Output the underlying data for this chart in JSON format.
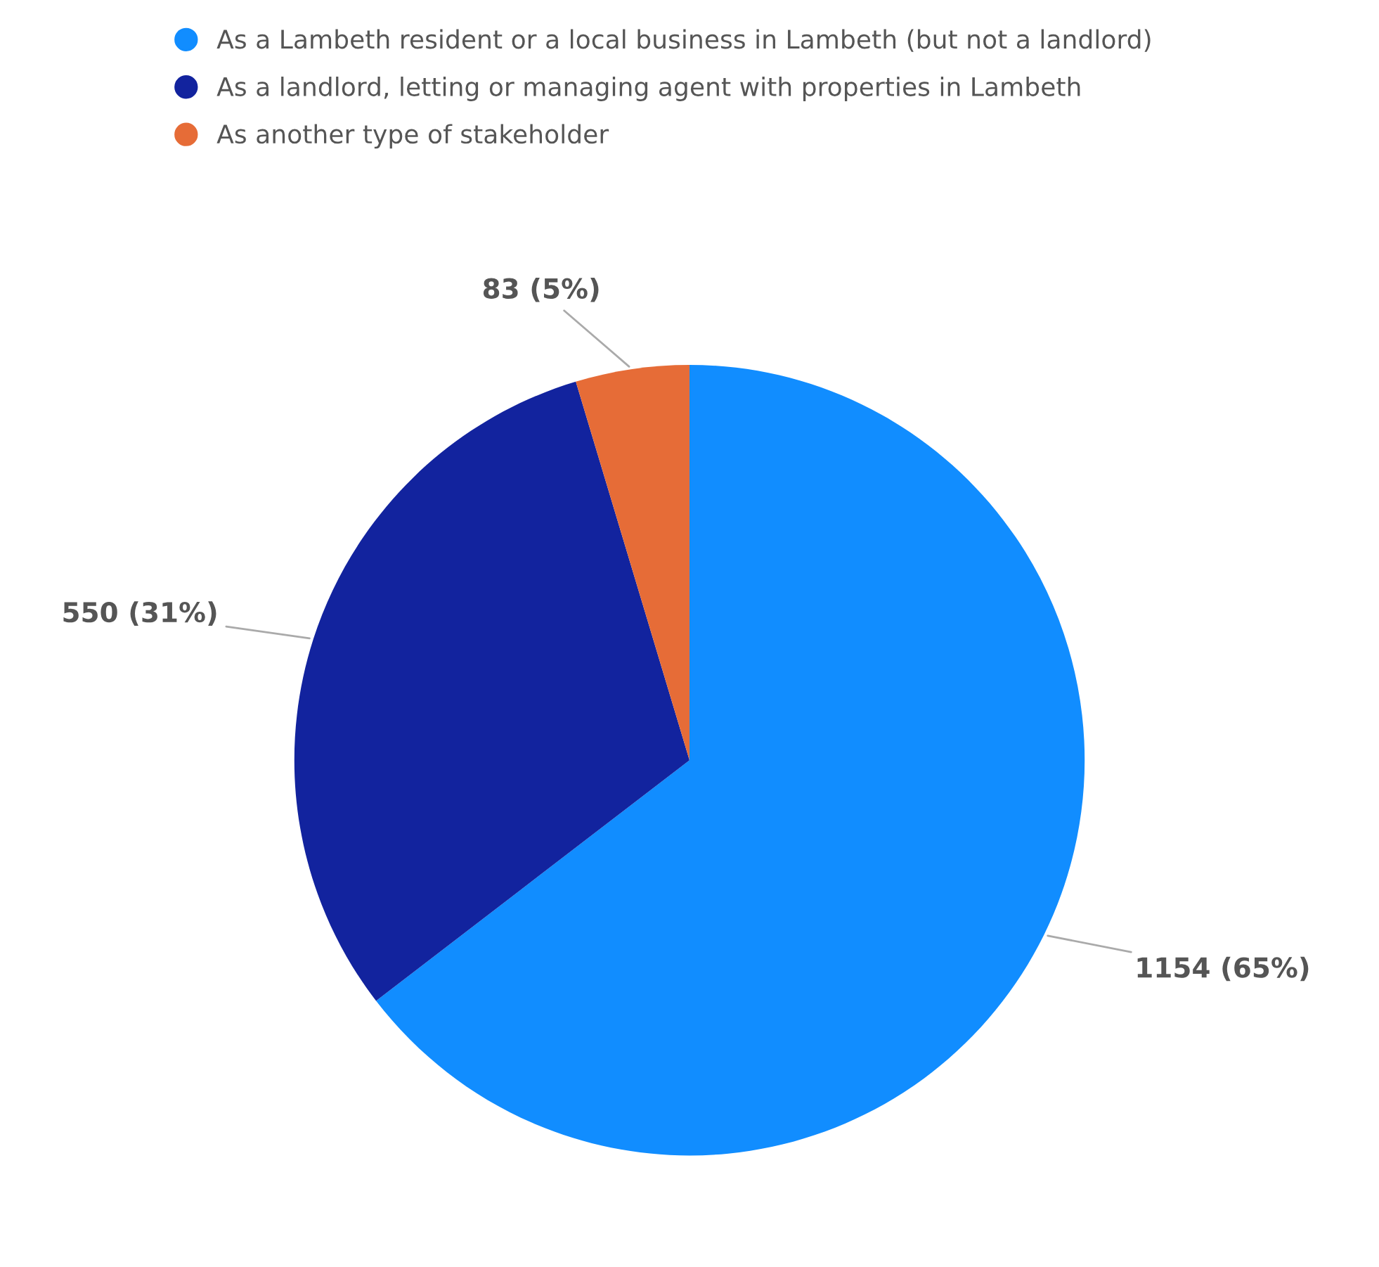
{
  "chart_data": {
    "type": "pie",
    "categories": [
      "As a Lambeth resident or a local business in Lambeth (but not a landlord)",
      "As a landlord, letting or managing agent with properties in Lambeth",
      "As another type of stakeholder"
    ],
    "values": [
      1154,
      550,
      83
    ],
    "colors": [
      "#118dff",
      "#12239e",
      "#e66c37"
    ],
    "value_labels": [
      "1154 (65%)",
      "550 (31%)",
      "83 (5%)"
    ],
    "legend": "top left"
  }
}
